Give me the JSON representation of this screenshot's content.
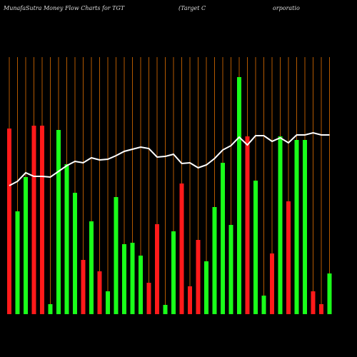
{
  "chart_data": {
    "type": "bar",
    "title_parts": [
      "MunafaSutra  Money Flow  Charts for TGT",
      "(Target C",
      "orporatio"
    ],
    "values": [
      260,
      144,
      192,
      264,
      264,
      14,
      258,
      210,
      170,
      76,
      130,
      60,
      32,
      164,
      98,
      100,
      82,
      44,
      126,
      13,
      116,
      183,
      39,
      104,
      74,
      150,
      212,
      125,
      332,
      249,
      187,
      26,
      85,
      249,
      158,
      244,
      244,
      32,
      14,
      57
    ],
    "colors": [
      "#ff1a1a",
      "#1aff1a",
      "#1aff1a",
      "#ff1a1a",
      "#ff1a1a",
      "#1aff1a",
      "#1aff1a",
      "#1aff1a",
      "#1aff1a",
      "#ff1a1a",
      "#1aff1a",
      "#ff1a1a",
      "#1aff1a",
      "#1aff1a",
      "#1aff1a",
      "#1aff1a",
      "#1aff1a",
      "#ff1a1a",
      "#ff1a1a",
      "#1aff1a",
      "#1aff1a",
      "#ff1a1a",
      "#ff1a1a",
      "#ff1a1a",
      "#1aff1a",
      "#1aff1a",
      "#1aff1a",
      "#1aff1a",
      "#1aff1a",
      "#ff1a1a",
      "#1aff1a",
      "#1aff1a",
      "#ff1a1a",
      "#1aff1a",
      "#ff1a1a",
      "#1aff1a",
      "#1aff1a",
      "#ff1a1a",
      "#ff1a1a",
      "#1aff1a"
    ],
    "line_values": [
      180,
      186,
      198,
      193,
      193,
      192,
      200,
      208,
      214,
      212,
      219,
      216,
      217,
      222,
      228,
      231,
      234,
      232,
      220,
      221,
      224,
      211,
      212,
      205,
      209,
      218,
      230,
      236,
      248,
      237,
      250,
      250,
      242,
      247,
      240,
      251,
      251,
      254,
      251,
      251
    ],
    "line_color": "#ffffff",
    "grid_color": "#b35900",
    "ylim": [
      0,
      340
    ]
  }
}
